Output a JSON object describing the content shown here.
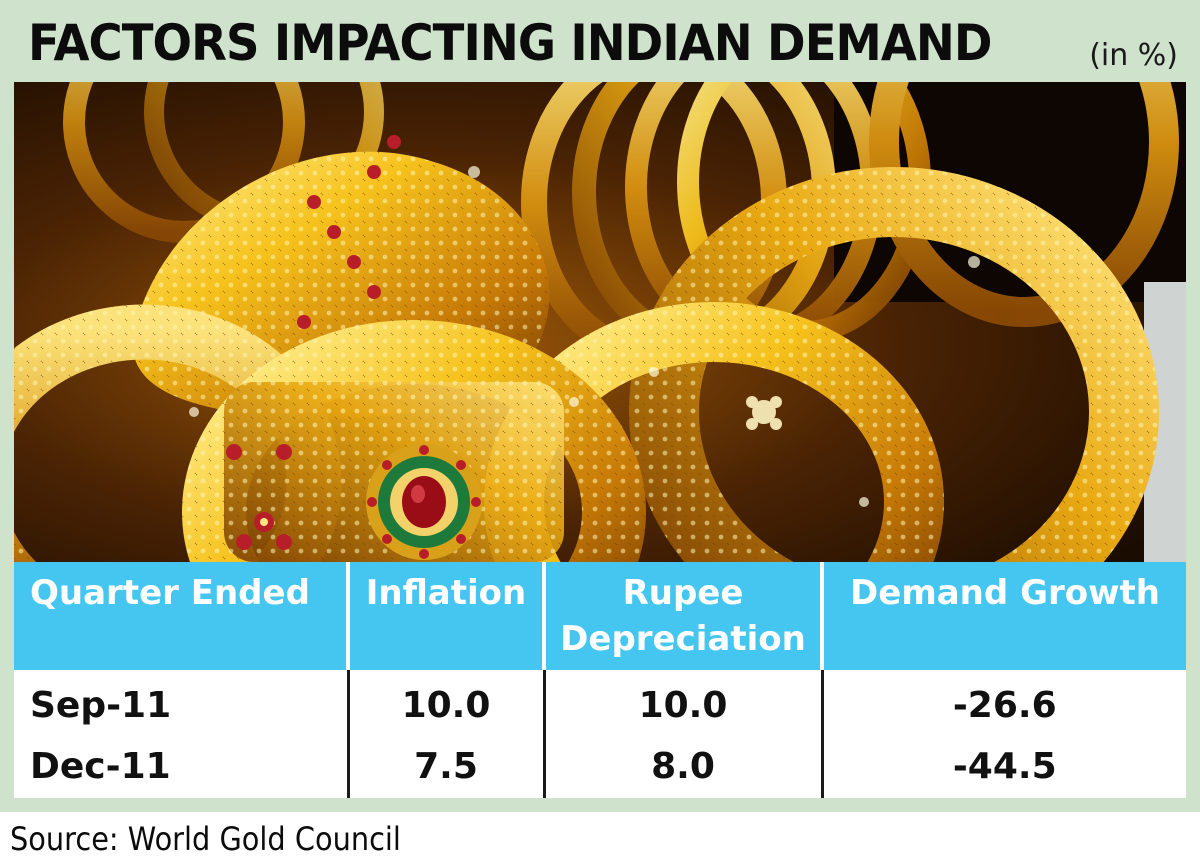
{
  "header": {
    "title": "FACTORS IMPACTING INDIAN DEMAND",
    "unit": "(in %)"
  },
  "footer": {
    "source": "Source: World Gold Council"
  },
  "colors": {
    "frame": "#cfe2cc",
    "header_row": "#45c6f0",
    "header_text": "#ffffff",
    "body_text": "#111111"
  },
  "chart_data": {
    "type": "table",
    "title": "FACTORS IMPACTING INDIAN DEMAND",
    "unit": "(in %)",
    "columns": [
      "Quarter Ended",
      "Inflation",
      "Rupee Depreciation",
      "Demand Growth"
    ],
    "rows": [
      [
        "Sep-11",
        "10.0",
        "10.0",
        "-26.6"
      ],
      [
        "Dec-11",
        "7.5",
        "8.0",
        "-44.5"
      ]
    ]
  }
}
